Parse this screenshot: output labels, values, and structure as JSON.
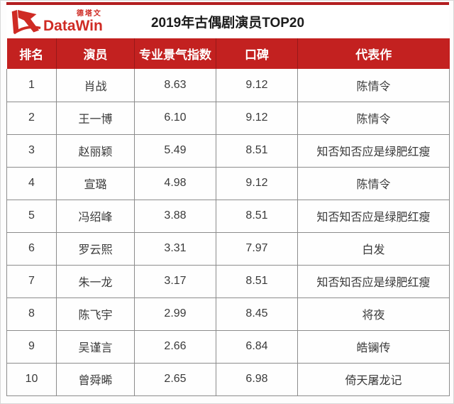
{
  "logo": {
    "cn": "德塔文",
    "en": "DataWin"
  },
  "colors": {
    "header_red": "#c32120",
    "top_line_red": "#b31e20",
    "logo_red": "#cf2b24",
    "border_gray": "#8c8c8c",
    "body_text": "#3a3a3a"
  },
  "chart_data": {
    "type": "table",
    "title": "2019年古偶剧演员TOP20",
    "columns": [
      "排名",
      "演员",
      "专业景气指数",
      "口碑",
      "代表作"
    ],
    "column_names_en": [
      "rank",
      "actor",
      "prosperity-index",
      "reputation",
      "representative-work"
    ],
    "rows": [
      [
        "1",
        "肖战",
        "8.63",
        "9.12",
        "陈情令"
      ],
      [
        "2",
        "王一博",
        "6.10",
        "9.12",
        "陈情令"
      ],
      [
        "3",
        "赵丽颖",
        "5.49",
        "8.51",
        "知否知否应是绿肥红瘦"
      ],
      [
        "4",
        "宣璐",
        "4.98",
        "9.12",
        "陈情令"
      ],
      [
        "5",
        "冯绍峰",
        "3.88",
        "8.51",
        "知否知否应是绿肥红瘦"
      ],
      [
        "6",
        "罗云熙",
        "3.31",
        "7.97",
        "白发"
      ],
      [
        "7",
        "朱一龙",
        "3.17",
        "8.51",
        "知否知否应是绿肥红瘦"
      ],
      [
        "8",
        "陈飞宇",
        "2.99",
        "8.45",
        "将夜"
      ],
      [
        "9",
        "吴谨言",
        "2.66",
        "6.84",
        "皓镧传"
      ],
      [
        "10",
        "曾舜晞",
        "2.65",
        "6.98",
        "倚天屠龙记"
      ]
    ],
    "legend": null,
    "grid": true
  }
}
